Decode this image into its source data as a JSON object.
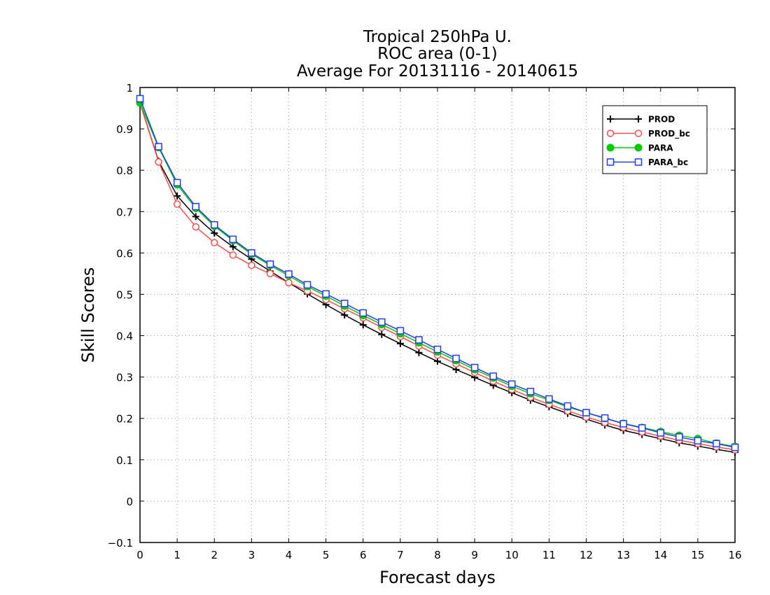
{
  "chart_data": {
    "type": "line",
    "title_lines": [
      "Tropical 250hPa U.",
      "ROC area (0-1)",
      "Average For 20131116 - 20140615"
    ],
    "xlabel": "Forecast days",
    "ylabel": "Skill Scores",
    "xlim": [
      0,
      16
    ],
    "ylim": [
      -0.1,
      1
    ],
    "x_ticks": [
      0,
      1,
      2,
      3,
      4,
      5,
      6,
      7,
      8,
      9,
      10,
      11,
      12,
      13,
      14,
      15,
      16
    ],
    "y_ticks": [
      -0.1,
      0,
      0.1,
      0.2,
      0.3,
      0.4,
      0.5,
      0.6,
      0.7,
      0.8,
      0.9,
      1
    ],
    "y_tick_labels": [
      "−0.1",
      "0",
      "0.1",
      "0.2",
      "0.3",
      "0.4",
      "0.5",
      "0.6",
      "0.7",
      "0.8",
      "0.9",
      "1"
    ],
    "grid": true,
    "legend_position": "top-right",
    "x": [
      0,
      0.5,
      1,
      1.5,
      2,
      2.5,
      3,
      3.5,
      4,
      4.5,
      5,
      5.5,
      6,
      6.5,
      7,
      7.5,
      8,
      8.5,
      9,
      9.5,
      10,
      10.5,
      11,
      11.5,
      12,
      12.5,
      13,
      13.5,
      14,
      14.5,
      15,
      15.5,
      16
    ],
    "series": [
      {
        "name": "PROD",
        "color": "#000000",
        "marker": "plus",
        "values": [
          0.963,
          0.822,
          0.738,
          0.688,
          0.648,
          0.615,
          0.585,
          0.556,
          0.528,
          0.501,
          0.475,
          0.45,
          0.426,
          0.403,
          0.381,
          0.359,
          0.338,
          0.318,
          0.299,
          0.28,
          0.262,
          0.244,
          0.228,
          0.212,
          0.198,
          0.184,
          0.171,
          0.161,
          0.151,
          0.141,
          0.133,
          0.125,
          0.118
        ]
      },
      {
        "name": "PROD_bc",
        "color": "#ff4c4c",
        "marker": "circle",
        "values": [
          0.963,
          0.82,
          0.718,
          0.663,
          0.625,
          0.595,
          0.57,
          0.55,
          0.528,
          0.508,
          0.487,
          0.465,
          0.443,
          0.42,
          0.398,
          0.375,
          0.353,
          0.332,
          0.311,
          0.29,
          0.27,
          0.251,
          0.234,
          0.218,
          0.203,
          0.19,
          0.178,
          0.167,
          0.157,
          0.147,
          0.139,
          0.131,
          0.124
        ]
      },
      {
        "name": "PARA",
        "color": "#00cc00",
        "marker": "filled-circle",
        "values": [
          0.963,
          0.855,
          0.765,
          0.708,
          0.665,
          0.63,
          0.597,
          0.57,
          0.545,
          0.519,
          0.496,
          0.472,
          0.449,
          0.427,
          0.405,
          0.383,
          0.361,
          0.34,
          0.318,
          0.298,
          0.278,
          0.26,
          0.244,
          0.228,
          0.214,
          0.2,
          0.188,
          0.178,
          0.168,
          0.159,
          0.151,
          0.14,
          0.132
        ]
      },
      {
        "name": "PARA_bc",
        "color": "#1f3cff",
        "marker": "square",
        "values": [
          0.973,
          0.857,
          0.77,
          0.712,
          0.668,
          0.633,
          0.6,
          0.573,
          0.549,
          0.523,
          0.501,
          0.478,
          0.455,
          0.433,
          0.412,
          0.39,
          0.367,
          0.345,
          0.323,
          0.302,
          0.283,
          0.265,
          0.247,
          0.23,
          0.214,
          0.201,
          0.187,
          0.177,
          0.165,
          0.155,
          0.146,
          0.139,
          0.13
        ]
      }
    ]
  }
}
